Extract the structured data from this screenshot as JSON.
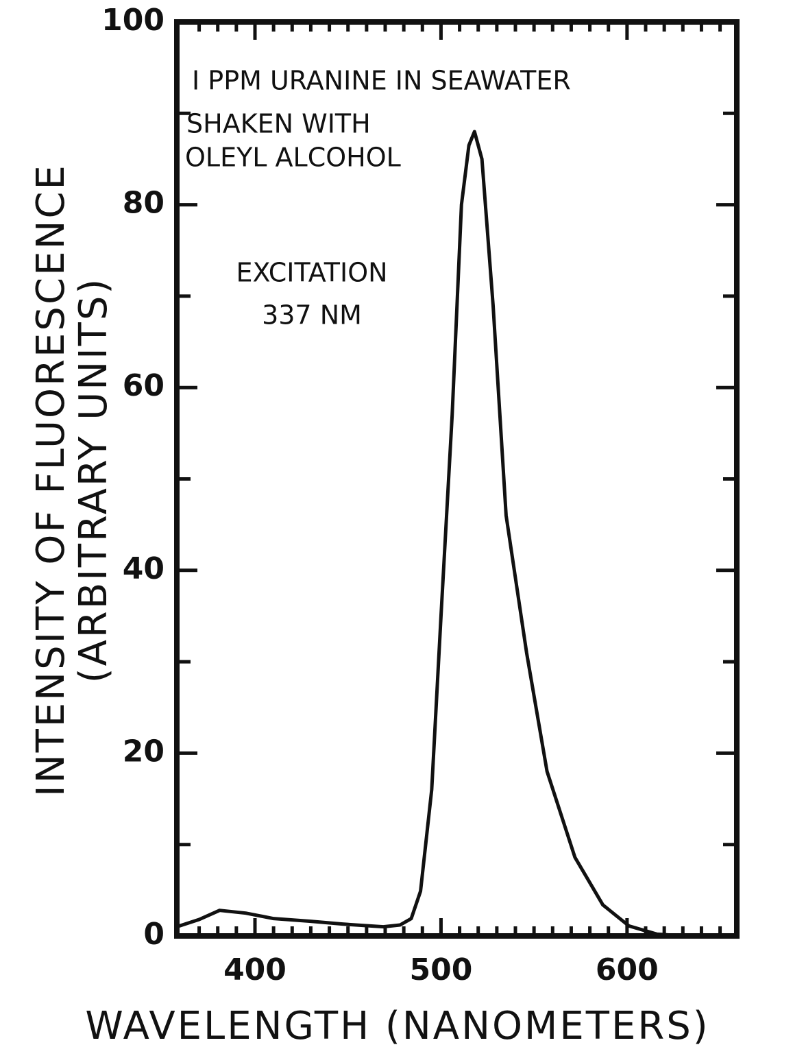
{
  "chart_data": {
    "type": "line",
    "annotations": [
      "I PPM URANINE IN SEAWATER",
      "SHAKEN WITH",
      "OLEYL ALCOHOL",
      "EXCITATION",
      "337 NM"
    ],
    "xlabel": "WAVELENGTH (NANOMETERS)",
    "ylabel": [
      "INTENSITY OF FLUORESCENCE",
      "(ARBITRARY UNITS)"
    ],
    "x": [
      358,
      370,
      381,
      395,
      410,
      430,
      447,
      469,
      478,
      484,
      489,
      495,
      500,
      506,
      511,
      515,
      518,
      522,
      528,
      535,
      546,
      557,
      572,
      587,
      601,
      616,
      631
    ],
    "series": [
      {
        "color": "#111111",
        "values": [
          1,
          1.8,
          2.8,
          2.5,
          1.9,
          1.6,
          1.3,
          1.0,
          1.2,
          1.9,
          4.9,
          16,
          35,
          57,
          80,
          86.5,
          88,
          85,
          69,
          46,
          31,
          18,
          8.6,
          3.4,
          1.1,
          0.2,
          0
        ]
      }
    ],
    "xlim": [
      358,
      659
    ],
    "ylim": [
      0,
      100
    ],
    "xticks": [
      400,
      500,
      600
    ],
    "yticks": [
      0,
      20,
      40,
      60,
      80,
      100
    ],
    "xminorticks": [
      370,
      380,
      390,
      410,
      420,
      430,
      440,
      450,
      460,
      470,
      480,
      490,
      510,
      520,
      530,
      540,
      550,
      560,
      570,
      580,
      590,
      610,
      620,
      630,
      640,
      650
    ],
    "yminorticks": [
      10,
      30,
      50,
      70,
      90
    ]
  }
}
